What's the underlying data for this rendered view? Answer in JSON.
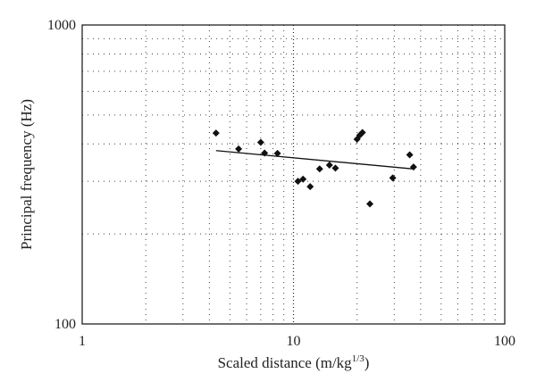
{
  "chart_data": {
    "type": "scatter",
    "title": "",
    "xlabel": "Scaled distance (m/kg",
    "xlabel_sup": "1/3",
    "xlabel_end": ")",
    "ylabel": "Principal frequency (Hz)",
    "xscale": "log",
    "yscale": "log",
    "xlim": [
      1,
      100
    ],
    "ylim": [
      100,
      1000
    ],
    "x_ticks": [
      1,
      10,
      100
    ],
    "x_tick_labels": [
      "1",
      "10",
      "100"
    ],
    "y_ticks": [
      100,
      1000
    ],
    "y_tick_labels": [
      "100",
      "1000"
    ],
    "grid": true,
    "legend": "none",
    "marker": "diamond",
    "points": [
      {
        "x": 4.3,
        "y": 435
      },
      {
        "x": 5.5,
        "y": 385
      },
      {
        "x": 7.0,
        "y": 405
      },
      {
        "x": 7.3,
        "y": 373
      },
      {
        "x": 8.4,
        "y": 372
      },
      {
        "x": 10.5,
        "y": 300
      },
      {
        "x": 11.1,
        "y": 305
      },
      {
        "x": 12.0,
        "y": 288
      },
      {
        "x": 13.3,
        "y": 330
      },
      {
        "x": 14.8,
        "y": 340
      },
      {
        "x": 15.8,
        "y": 332
      },
      {
        "x": 20.0,
        "y": 415
      },
      {
        "x": 20.6,
        "y": 428
      },
      {
        "x": 21.2,
        "y": 437
      },
      {
        "x": 23.0,
        "y": 252
      },
      {
        "x": 29.5,
        "y": 308
      },
      {
        "x": 35.5,
        "y": 368
      },
      {
        "x": 37.0,
        "y": 335
      }
    ],
    "trendline": {
      "x": [
        4.3,
        37.0
      ],
      "y": [
        380,
        330
      ]
    },
    "colors": {
      "marker": "#111111",
      "line": "#111111",
      "axes": "#111111"
    }
  }
}
